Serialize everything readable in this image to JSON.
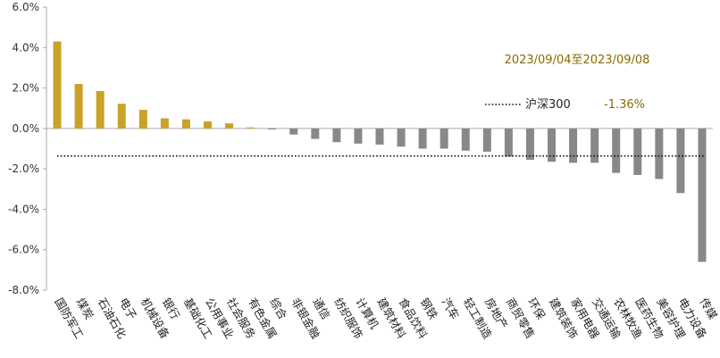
{
  "chart_data": {
    "type": "bar",
    "annotation": "2023/09/04至2023/09/08",
    "benchmark": {
      "name": "沪深300",
      "label": "-1.36%",
      "value": -1.36
    },
    "y_ticks": [
      "6.0%",
      "4.0%",
      "2.0%",
      "0.0%",
      "-2.0%",
      "-4.0%",
      "-6.0%",
      "-8.0%"
    ],
    "ylim": [
      -8.0,
      6.0
    ],
    "grid": false,
    "categories": [
      "国防军工",
      "煤炭",
      "石油石化",
      "电子",
      "机械设备",
      "银行",
      "基础化工",
      "公用事业",
      "社会服务",
      "有色金属",
      "综合",
      "非银金融",
      "通信",
      "纺织服饰",
      "计算机",
      "建筑材料",
      "食品饮料",
      "钢铁",
      "汽车",
      "轻工制造",
      "房地产",
      "商贸零售",
      "环保",
      "建筑装饰",
      "家用电器",
      "交通运输",
      "农林牧渔",
      "医药生物",
      "美容护理",
      "电力设备",
      "传媒"
    ],
    "values": [
      4.3,
      2.2,
      1.85,
      1.22,
      0.92,
      0.5,
      0.45,
      0.35,
      0.25,
      0.05,
      -0.05,
      -0.3,
      -0.52,
      -0.68,
      -0.75,
      -0.8,
      -0.9,
      -1.0,
      -1.0,
      -1.1,
      -1.15,
      -1.4,
      -1.55,
      -1.65,
      -1.7,
      -1.7,
      -2.2,
      -2.3,
      -2.5,
      -3.2,
      -6.6
    ],
    "colors": {
      "positive": "#C9A227",
      "negative": "#888888",
      "annotation": "#8A6A00",
      "axis": "#AAAAAA"
    }
  }
}
